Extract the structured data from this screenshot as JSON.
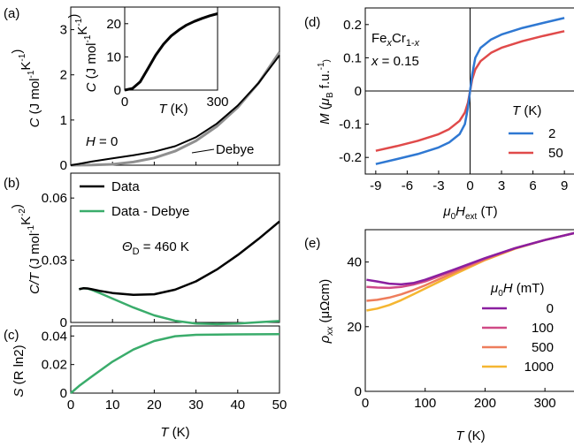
{
  "chart_data": [
    {
      "id": "a",
      "panel_label": "(a)",
      "type": "line",
      "title": "",
      "xlabel": "",
      "ylabel_parts": [
        "C",
        " (J mol",
        "-1",
        "K",
        "-1",
        ")"
      ],
      "xlim": [
        0,
        50
      ],
      "ylim": [
        0,
        3.5
      ],
      "yticks": [
        0,
        1,
        2,
        3
      ],
      "annotations": [
        "H = 0",
        "Debye"
      ],
      "series": [
        {
          "name": "",
          "color": "#000000",
          "x": [
            0,
            2,
            5,
            10,
            15,
            20,
            25,
            30,
            35,
            40,
            45,
            50
          ],
          "y": [
            0,
            0.03,
            0.08,
            0.15,
            0.22,
            0.3,
            0.42,
            0.62,
            0.92,
            1.32,
            1.82,
            2.43
          ]
        },
        {
          "name": "Debye",
          "color": "#909090",
          "x": [
            0,
            5,
            10,
            15,
            20,
            25,
            30,
            35,
            40,
            45,
            50
          ],
          "y": [
            0,
            0.003,
            0.02,
            0.07,
            0.16,
            0.31,
            0.54,
            0.86,
            1.28,
            1.82,
            2.5
          ]
        }
      ]
    },
    {
      "id": "a_inset",
      "type": "line",
      "xlabel_parts": [
        "T",
        " (K)"
      ],
      "ylabel_parts": [
        "C",
        " (J mol",
        "-1",
        "K",
        "-1",
        ")"
      ],
      "xlim": [
        0,
        300
      ],
      "ylim": [
        0,
        25
      ],
      "xticks": [
        0,
        300
      ],
      "yticks": [
        0,
        10,
        20
      ],
      "series": [
        {
          "name": "",
          "color": "#000000",
          "x": [
            0,
            25,
            50,
            75,
            100,
            125,
            150,
            175,
            200,
            225,
            250,
            275,
            300
          ],
          "y": [
            0,
            0.5,
            2.5,
            6.5,
            10.5,
            13.8,
            16.3,
            18.1,
            19.6,
            20.7,
            21.6,
            22.4,
            23
          ]
        }
      ]
    },
    {
      "id": "b",
      "panel_label": "(b)",
      "type": "line",
      "xlabel": "",
      "ylabel_parts": [
        "C/T",
        " (J mol",
        "-1",
        "K",
        "-2",
        ")"
      ],
      "xlim": [
        0,
        50
      ],
      "ylim": [
        0,
        0.072
      ],
      "yticks": [
        0,
        0.03,
        0.06
      ],
      "ytick_labels": [
        "0",
        "0.03",
        "0.06"
      ],
      "annotation": "Θ_D = 460 K",
      "series": [
        {
          "name": "Data",
          "color": "#000000",
          "x": [
            2,
            3,
            4,
            5,
            7,
            10,
            15,
            20,
            25,
            30,
            35,
            40,
            45,
            50
          ],
          "y": [
            0.016,
            0.0165,
            0.0164,
            0.016,
            0.0152,
            0.0142,
            0.0133,
            0.0136,
            0.0158,
            0.0198,
            0.0255,
            0.0325,
            0.0403,
            0.0487
          ]
        },
        {
          "name": "Data - Debye",
          "color": "#3aac6b",
          "x": [
            2,
            3,
            4,
            5,
            7,
            10,
            15,
            20,
            25,
            30,
            35,
            40,
            45,
            50
          ],
          "y": [
            0.016,
            0.0165,
            0.0163,
            0.0157,
            0.0141,
            0.0115,
            0.0072,
            0.0034,
            0.0008,
            -0.0005,
            -0.0008,
            -0.0005,
            0.0001,
            0.0007
          ]
        }
      ]
    },
    {
      "id": "c",
      "panel_label": "(c)",
      "type": "line",
      "xlabel_parts": [
        "T",
        " (K)"
      ],
      "ylabel_parts": [
        "S",
        " (R ln2)"
      ],
      "xlim": [
        0,
        50
      ],
      "ylim": [
        0,
        0.047
      ],
      "xticks": [
        0,
        10,
        20,
        30,
        40,
        50
      ],
      "yticks": [
        0,
        0.02,
        0.04
      ],
      "ytick_labels": [
        "0",
        "0.02",
        "0.04"
      ],
      "series": [
        {
          "name": "",
          "color": "#3aac6b",
          "x": [
            0,
            2,
            5,
            10,
            15,
            20,
            25,
            30,
            35,
            40,
            45,
            50
          ],
          "y": [
            0,
            0.005,
            0.0115,
            0.022,
            0.0305,
            0.0365,
            0.0398,
            0.0408,
            0.041,
            0.0411,
            0.0412,
            0.0413
          ]
        }
      ]
    },
    {
      "id": "d",
      "panel_label": "(d)",
      "type": "line",
      "xlabel_parts": [
        "μ",
        "0",
        "H",
        "ext",
        " (T)"
      ],
      "ylabel_parts": [
        "M",
        " (",
        "μ",
        "B",
        " f.u.",
        "-1",
        ")"
      ],
      "xlim": [
        -10,
        10
      ],
      "ylim": [
        -0.25,
        0.25
      ],
      "xticks": [
        -9,
        -6,
        -3,
        0,
        3,
        6,
        9
      ],
      "yticks": [
        -0.2,
        -0.1,
        0,
        0.1,
        0.2
      ],
      "ytick_labels": [
        "-0.2",
        "-0.1",
        "0",
        "0.1",
        "0.2"
      ],
      "annotation_parts": [
        "Fe",
        "x",
        "Cr",
        "1-x"
      ],
      "annotation2": "x = 0.15",
      "legend_title": "T (K)",
      "series": [
        {
          "name": "2",
          "color": "#2f78d2",
          "x": [
            -9,
            -7,
            -5,
            -3,
            -2,
            -1,
            -0.5,
            -0.2,
            0,
            0.2,
            0.5,
            1,
            2,
            3,
            5,
            7,
            9
          ],
          "y": [
            -0.22,
            -0.205,
            -0.19,
            -0.17,
            -0.155,
            -0.13,
            -0.1,
            -0.05,
            0,
            0.05,
            0.1,
            0.13,
            0.155,
            0.17,
            0.19,
            0.205,
            0.22
          ]
        },
        {
          "name": "50",
          "color": "#e04a4a",
          "x": [
            -9,
            -7,
            -5,
            -3,
            -2,
            -1,
            -0.5,
            -0.2,
            0,
            0.2,
            0.5,
            1,
            2,
            3,
            5,
            7,
            9
          ],
          "y": [
            -0.18,
            -0.166,
            -0.15,
            -0.13,
            -0.115,
            -0.09,
            -0.065,
            -0.035,
            0,
            0.035,
            0.065,
            0.09,
            0.115,
            0.13,
            0.15,
            0.166,
            0.18
          ]
        }
      ]
    },
    {
      "id": "e",
      "panel_label": "(e)",
      "type": "line",
      "xlabel_parts": [
        "T",
        " (K)"
      ],
      "ylabel_parts": [
        "ρ",
        "xx",
        " (μΩcm)"
      ],
      "xlim": [
        0,
        350
      ],
      "ylim": [
        0,
        50
      ],
      "xticks": [
        0,
        100,
        200,
        300
      ],
      "yticks": [
        0,
        20,
        40
      ],
      "legend_title_parts": [
        "μ",
        "0",
        "H",
        " (mT)"
      ],
      "series": [
        {
          "name": "0",
          "color": "#8a1fa0",
          "x": [
            2,
            20,
            40,
            60,
            80,
            100,
            150,
            200,
            250,
            300,
            350
          ],
          "y": [
            34.5,
            34.0,
            33.3,
            33.1,
            33.5,
            34.5,
            37.8,
            41.2,
            44.3,
            46.8,
            49
          ]
        },
        {
          "name": "100",
          "color": "#d04a86",
          "x": [
            2,
            20,
            40,
            60,
            80,
            100,
            150,
            200,
            250,
            300,
            350
          ],
          "y": [
            32.3,
            32.1,
            32.0,
            32.3,
            33.0,
            34.0,
            37.5,
            41.1,
            44.3,
            46.8,
            49
          ]
        },
        {
          "name": "500",
          "color": "#ee7d5c",
          "x": [
            2,
            20,
            40,
            60,
            80,
            100,
            150,
            200,
            250,
            300,
            350
          ],
          "y": [
            28.0,
            28.3,
            29.0,
            30.0,
            31.3,
            32.8,
            36.9,
            40.8,
            44.2,
            46.8,
            49
          ]
        },
        {
          "name": "1000",
          "color": "#f5b631",
          "x": [
            2,
            20,
            40,
            60,
            80,
            100,
            150,
            200,
            250,
            300,
            350
          ],
          "y": [
            25.0,
            25.6,
            26.7,
            28.2,
            30.0,
            31.8,
            36.3,
            40.6,
            44.1,
            46.8,
            49
          ]
        }
      ]
    }
  ]
}
